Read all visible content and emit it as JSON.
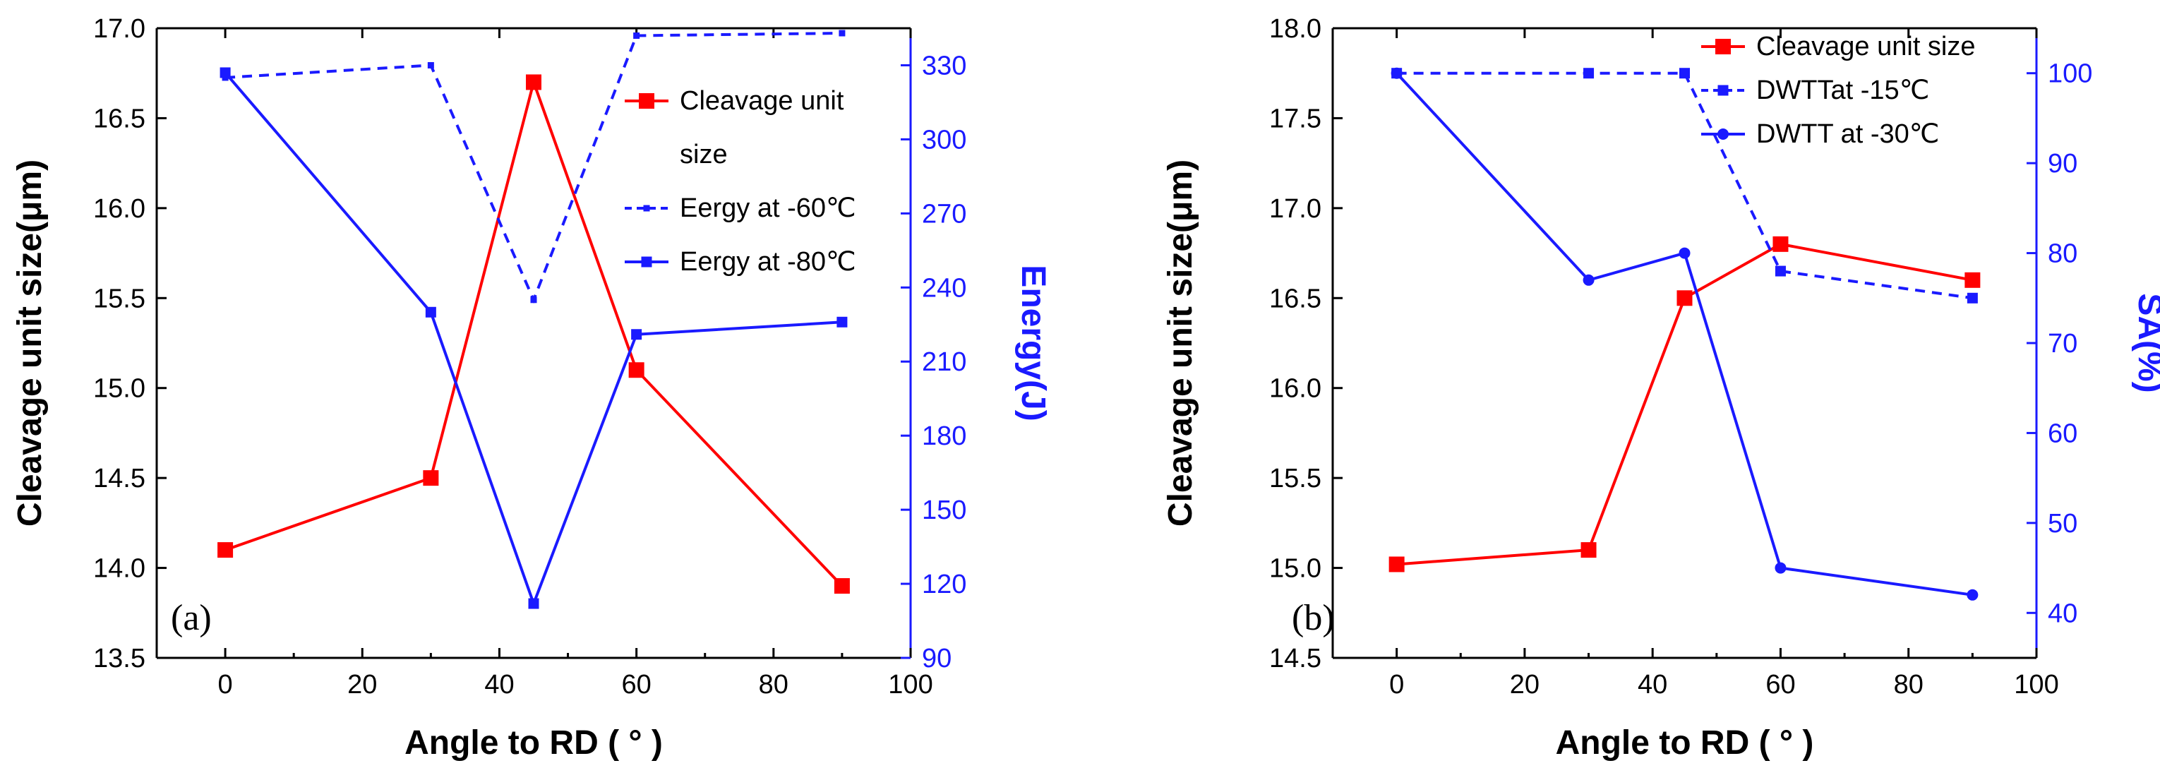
{
  "chart_data": [
    {
      "type": "line",
      "panel_label": "(a)",
      "xlabel": "Angle to RD ( ° )",
      "ylabel": "Cleavage unit size(μm)",
      "y2label": "Energy(J)",
      "xlim": [
        -10,
        100
      ],
      "ylim": [
        13.5,
        17.0
      ],
      "y2lim": [
        90,
        345
      ],
      "x_ticks": [
        "0",
        "20",
        "40",
        "60",
        "80",
        "100"
      ],
      "y_ticks": [
        "13.5",
        "14.0",
        "14.5",
        "15.0",
        "15.5",
        "16.0",
        "16.5",
        "17.0"
      ],
      "y2_ticks": [
        "90",
        "120",
        "150",
        "180",
        "210",
        "240",
        "270",
        "300",
        "330"
      ],
      "legend_position": "top-right",
      "series": [
        {
          "name": "Cleavage unit size",
          "axis": "left",
          "color": "#ff0000",
          "style": "solid",
          "marker": "square-large",
          "x": [
            0,
            30,
            45,
            60,
            90
          ],
          "values": [
            14.1,
            14.5,
            16.7,
            15.1,
            13.9
          ]
        },
        {
          "name": "Eergy at -60℃",
          "axis": "right",
          "color": "#1a1aff",
          "style": "dashed",
          "marker": "square-small",
          "x": [
            0,
            30,
            45,
            60,
            90
          ],
          "values": [
            325,
            330,
            235,
            342,
            343
          ]
        },
        {
          "name": "Eergy at -80℃",
          "axis": "right",
          "color": "#1a1aff",
          "style": "solid",
          "marker": "square",
          "x": [
            0,
            30,
            45,
            60,
            90
          ],
          "values": [
            327,
            230,
            112,
            221,
            226
          ]
        }
      ],
      "legend_lines": [
        {
          "series": 0,
          "lines": [
            "Cleavage unit",
            "size"
          ]
        },
        {
          "series": 1,
          "lines": [
            "Eergy at -60℃"
          ]
        },
        {
          "series": 2,
          "lines": [
            "Eergy at -80℃"
          ]
        }
      ]
    },
    {
      "type": "line",
      "panel_label": "(b)",
      "xlabel": "Angle to RD ( ° )",
      "ylabel": "Cleavage unit size(μm)",
      "y2label": "SA(%)",
      "xlim": [
        -10,
        100
      ],
      "ylim": [
        14.5,
        18.0
      ],
      "y2lim": [
        35,
        105
      ],
      "x_ticks": [
        "0",
        "20",
        "40",
        "60",
        "80",
        "100"
      ],
      "y_ticks": [
        "14.5",
        "15.0",
        "15.5",
        "16.0",
        "16.5",
        "17.0",
        "17.5",
        "18.0"
      ],
      "y2_ticks": [
        "40",
        "50",
        "60",
        "70",
        "80",
        "90",
        "100"
      ],
      "legend_position": "top-right",
      "series": [
        {
          "name": "Cleavage unit size",
          "axis": "left",
          "color": "#ff0000",
          "style": "solid",
          "marker": "square-large",
          "x": [
            0,
            30,
            45,
            60,
            90
          ],
          "values": [
            15.02,
            15.1,
            16.5,
            16.8,
            16.6
          ]
        },
        {
          "name": "DWTTat -15℃",
          "axis": "right",
          "color": "#1a1aff",
          "style": "dashed",
          "marker": "square",
          "x": [
            0,
            30,
            45,
            60,
            90
          ],
          "values": [
            100,
            100,
            100,
            78,
            75
          ]
        },
        {
          "name": "DWTT at -30℃",
          "axis": "right",
          "color": "#1a1aff",
          "style": "solid",
          "marker": "circle",
          "x": [
            0,
            30,
            45,
            60,
            90
          ],
          "values": [
            100,
            77,
            80,
            45,
            42
          ]
        }
      ],
      "legend_lines": [
        {
          "series": 0,
          "lines": [
            "Cleavage unit size"
          ]
        },
        {
          "series": 1,
          "lines": [
            "DWTTat -15℃"
          ]
        },
        {
          "series": 2,
          "lines": [
            "DWTT at -30℃"
          ]
        }
      ]
    }
  ]
}
